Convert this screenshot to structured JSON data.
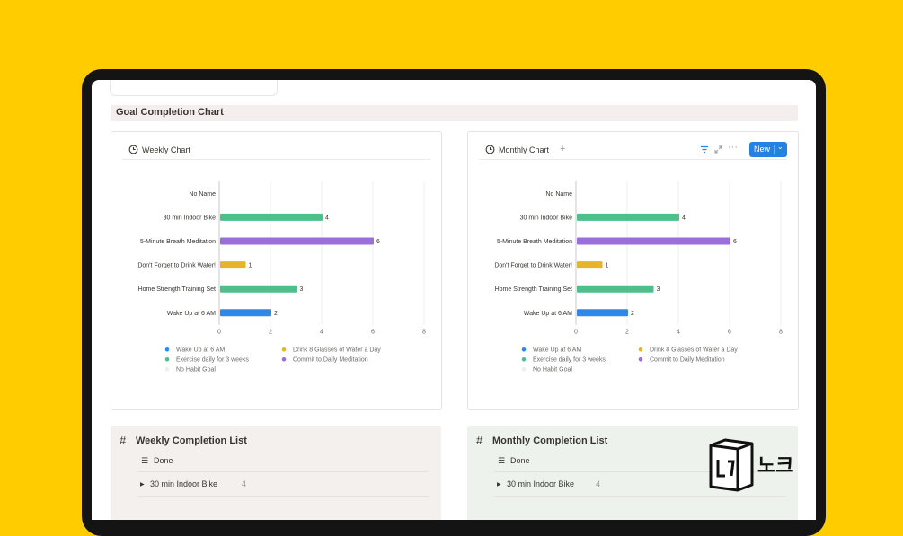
{
  "section_heading": "Goal Completion Chart",
  "weekly_card": {
    "title": "Weekly Chart"
  },
  "monthly_card": {
    "title": "Monthly Chart",
    "new_label": "New"
  },
  "weekly_list": {
    "title": "Weekly Completion List",
    "group_label": "Done",
    "item_label": "30 min Indoor Bike",
    "item_count": "4"
  },
  "monthly_list": {
    "title": "Monthly Completion List",
    "group_label": "Done",
    "item_label": "30 min Indoor Bike",
    "item_count": "4"
  },
  "logo": {
    "text": "노크"
  },
  "colors": {
    "background": "#FFCC00",
    "accent": "#2383e2"
  },
  "chart_data": [
    {
      "type": "bar",
      "orientation": "horizontal",
      "title": "Weekly Chart",
      "categories": [
        "No Name",
        "30 min Indoor Bike",
        "5-Minute Breath Meditation",
        "Don't Forget to Drink Water!",
        "Home Strength Training Set",
        "Wake Up at 6 AM"
      ],
      "values": [
        null,
        4,
        6,
        1,
        3,
        2
      ],
      "bar_colors": [
        "#e9e9e7",
        "#4dbf8a",
        "#9b6ee0",
        "#e7b32b",
        "#4dbf8a",
        "#2d8ae8"
      ],
      "xlim": [
        0,
        8
      ],
      "xticks": [
        "0",
        "2",
        "4",
        "6",
        "8"
      ],
      "grid": true,
      "legend_position": "bottom",
      "legend": [
        {
          "label": "Wake Up at 6 AM",
          "color": "#2d8ae8"
        },
        {
          "label": "Drink 8 Glasses of Water a Day",
          "color": "#e7b32b"
        },
        {
          "label": "Exercise daily for 3 weeks",
          "color": "#4dbf8a"
        },
        {
          "label": "Commit to Daily Meditation",
          "color": "#9b6ee0"
        },
        {
          "label": "No Habit Goal",
          "color": "#eeeeec"
        }
      ]
    },
    {
      "type": "bar",
      "orientation": "horizontal",
      "title": "Monthly Chart",
      "categories": [
        "No Name",
        "30 min Indoor Bike",
        "5-Minute Breath Meditation",
        "Don't Forget to Drink Water!",
        "Home Strength Training Set",
        "Wake Up at 6 AM"
      ],
      "values": [
        null,
        4,
        6,
        1,
        3,
        2
      ],
      "bar_colors": [
        "#e9e9e7",
        "#4dbf8a",
        "#9b6ee0",
        "#e7b32b",
        "#4dbf8a",
        "#2d8ae8"
      ],
      "xlim": [
        0,
        8
      ],
      "xticks": [
        "0",
        "2",
        "4",
        "6",
        "8"
      ],
      "grid": true,
      "legend_position": "bottom",
      "legend": [
        {
          "label": "Wake Up at 6 AM",
          "color": "#2d8ae8"
        },
        {
          "label": "Drink 8 Glasses of Water a Day",
          "color": "#e7b32b"
        },
        {
          "label": "Exercise daily for 3 weeks",
          "color": "#4dbf8a"
        },
        {
          "label": "Commit to Daily Meditation",
          "color": "#9b6ee0"
        },
        {
          "label": "No Habit Goal",
          "color": "#eeeeec"
        }
      ]
    }
  ]
}
